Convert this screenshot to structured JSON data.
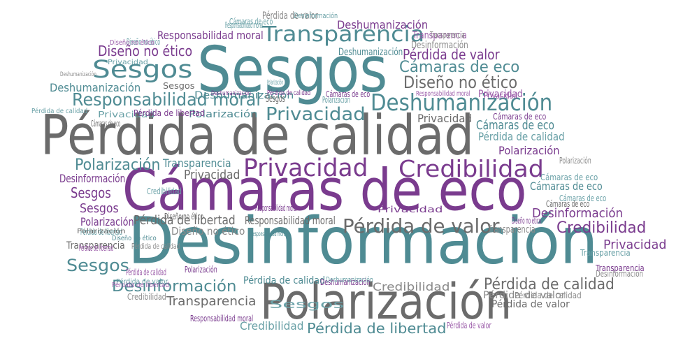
{
  "palette": {
    "teal": "#4f8b93",
    "gray": "#6b6b6b",
    "purple": "#7a3b8e",
    "light_teal": "#6aa1a7",
    "light_gray": "#8a8a8a",
    "light_purple": "#9a5aa8"
  },
  "words": [
    {
      "text": "Desinformación",
      "color": "#4f8b93"
    },
    {
      "text": "Cámaras de eco",
      "color": "#7a3b8e"
    },
    {
      "text": "Pérdida de calidad",
      "color": "#6b6b6b"
    },
    {
      "text": "Sesgos",
      "color": "#4f8b93"
    },
    {
      "text": "Polarización",
      "color": "#6b6b6b"
    },
    {
      "text": "Transparencia",
      "color": "#4f8b93"
    },
    {
      "text": "Deshumanización",
      "color": "#4f8b93"
    },
    {
      "text": "Credibilidad",
      "color": "#7a3b8e"
    },
    {
      "text": "Privacidad",
      "color": "#7a3b8e"
    },
    {
      "text": "Sesgos",
      "color": "#4f8b93"
    },
    {
      "text": "Pérdida de valor",
      "color": "#6b6b6b"
    },
    {
      "text": "Responsabilidad moral",
      "color": "#4f8b93"
    },
    {
      "text": "Privacidad",
      "color": "#4f8b93"
    },
    {
      "text": "Diseño no ético",
      "color": "#6b6b6b"
    },
    {
      "text": "Cámaras de eco",
      "color": "#4f8b93"
    },
    {
      "text": "Pérdida de calidad",
      "color": "#6b6b6b"
    },
    {
      "text": "Desinformación",
      "color": "#4f8b93"
    },
    {
      "text": "Sesgos",
      "color": "#4f8b93"
    },
    {
      "text": "Credibilidad",
      "color": "#7a3b8e"
    },
    {
      "text": "Pérdida de libertad",
      "color": "#4f8b93"
    },
    {
      "text": "Transparencia",
      "color": "#6b6b6b"
    },
    {
      "text": "Polarización",
      "color": "#4f8b93"
    },
    {
      "text": "Diseño no ético",
      "color": "#7a3b8e"
    },
    {
      "text": "Responsabilidad moral",
      "color": "#7a3b8e"
    },
    {
      "text": "Pérdida de valor",
      "color": "#7a3b8e"
    },
    {
      "text": "Deshumanización",
      "color": "#7a3b8e"
    },
    {
      "text": "Privacidad",
      "color": "#7a3b8e"
    },
    {
      "text": "Polarización",
      "color": "#7a3b8e"
    },
    {
      "text": "Desinformación",
      "color": "#7a3b8e"
    },
    {
      "text": "Cámaras de eco",
      "color": "#4f8b93"
    },
    {
      "text": "Pérdida de calidad",
      "color": "#6aa1a7"
    },
    {
      "text": "Deshumanización",
      "color": "#4f8b93"
    },
    {
      "text": "Privacidad",
      "color": "#6b6b6b"
    },
    {
      "text": "Sesgos",
      "color": "#7a3b8e"
    },
    {
      "text": "Sesgos",
      "color": "#7a3b8e"
    },
    {
      "text": "Pérdida de libertad",
      "color": "#6b6b6b"
    },
    {
      "text": "Transparencia",
      "color": "#6b6b6b"
    },
    {
      "text": "Credibilidad",
      "color": "#8a8a8a"
    },
    {
      "text": "Desinformación",
      "color": "#7a3b8e"
    },
    {
      "text": "Privacidad",
      "color": "#6b6b6b"
    },
    {
      "text": "Polarización",
      "color": "#7a3b8e"
    },
    {
      "text": "Diseño no ético",
      "color": "#8a8a8a"
    },
    {
      "text": "Responsabilidad moral",
      "color": "#6b6b6b"
    },
    {
      "text": "Pérdida de valor",
      "color": "#8a8a8a"
    },
    {
      "text": "Cámaras de eco",
      "color": "#4f8b93"
    },
    {
      "text": "Pérdida de calidad",
      "color": "#4f8b93"
    },
    {
      "text": "Cámaras de eco",
      "color": "#6aa1a7"
    },
    {
      "text": "Transparencia",
      "color": "#4f8b93"
    },
    {
      "text": "Deshumanización",
      "color": "#4f8b93"
    },
    {
      "text": "Polarización",
      "color": "#4f8b93"
    },
    {
      "text": "Privacidad",
      "color": "#6aa1a7"
    },
    {
      "text": "Privacidad",
      "color": "#9a5aa8"
    },
    {
      "text": "Sesgos",
      "color": "#6b6b6b"
    },
    {
      "text": "Sesgos",
      "color": "#6b6b6b"
    },
    {
      "text": "Transparencia",
      "color": "#9a5aa8"
    },
    {
      "text": "Transparencia",
      "color": "#8a8a8a"
    },
    {
      "text": "Pérdida de libertad",
      "color": "#7a3b8e"
    },
    {
      "text": "Pérdida de libertad",
      "color": "#9a5aa8"
    },
    {
      "text": "Pérdida de valor",
      "color": "#8a8a8a"
    },
    {
      "text": "Pérdida de valor",
      "color": "#6b6b6b"
    },
    {
      "text": "Pérdida de calidad",
      "color": "#8a8a8a"
    },
    {
      "text": "Cámaras de eco",
      "color": "#6aa1a7"
    },
    {
      "text": "Cámaras de eco",
      "color": "#6b6b6b"
    },
    {
      "text": "Diseño no ético",
      "color": "#6aa1a7"
    },
    {
      "text": "Deshumanización",
      "color": "#4f8b93"
    },
    {
      "text": "Deshumanización",
      "color": "#7a3b8e"
    },
    {
      "text": "Desinformación",
      "color": "#8a8a8a"
    },
    {
      "text": "Desinformación",
      "color": "#8a8a8a"
    },
    {
      "text": "Pérdida de calidad",
      "color": "#9a5aa8"
    },
    {
      "text": "Pérdida de calidad",
      "color": "#6aa1a7"
    },
    {
      "text": "Pérdida de calidad",
      "color": "#7a3b8e"
    },
    {
      "text": "Pérdida de calidad",
      "color": "#8a8a8a"
    },
    {
      "text": "Pérdida de libertad",
      "color": "#9a5aa8"
    },
    {
      "text": "Pérdida de libertad",
      "color": "#6aa1a7"
    },
    {
      "text": "Cámaras de eco",
      "color": "#6b6b6b"
    },
    {
      "text": "Cámaras de eco",
      "color": "#7a3b8e"
    },
    {
      "text": "Cámaras de eco",
      "color": "#7a3b8e"
    },
    {
      "text": "Cámaras de eco",
      "color": "#6aa1a7"
    },
    {
      "text": "Diseño no ético",
      "color": "#9a5aa8"
    },
    {
      "text": "Diseño no ético",
      "color": "#4f8b93"
    },
    {
      "text": "Diseño no ético",
      "color": "#7a3b8e"
    },
    {
      "text": "Diseño no ético",
      "color": "#6b6b6b"
    },
    {
      "text": "Deshumanización",
      "color": "#7a3b8e"
    },
    {
      "text": "Deshumanización",
      "color": "#8a8a8a"
    },
    {
      "text": "Deshumanización",
      "color": "#6aa1a7"
    },
    {
      "text": "Responsabilidad moral",
      "color": "#7a3b8e"
    },
    {
      "text": "Responsabilidad moral",
      "color": "#9a5aa8"
    },
    {
      "text": "Responsabilidad moral",
      "color": "#4f8b93"
    },
    {
      "text": "Responsabilidad moral",
      "color": "#7a3b8e"
    },
    {
      "text": "Responsabilidad moral",
      "color": "#6aa1a7"
    },
    {
      "text": "Privacidad",
      "color": "#9a5aa8"
    },
    {
      "text": "Privacidad",
      "color": "#7a3b8e"
    },
    {
      "text": "Privacidad",
      "color": "#6aa1a7"
    },
    {
      "text": "Polarización",
      "color": "#6aa1a7"
    },
    {
      "text": "Polarización",
      "color": "#6aa1a7"
    },
    {
      "text": "Polarización",
      "color": "#6b6b6b"
    },
    {
      "text": "Polarización",
      "color": "#8a8a8a"
    },
    {
      "text": "Polarización",
      "color": "#7a3b8e"
    },
    {
      "text": "Credibilidad",
      "color": "#6aa1a7"
    },
    {
      "text": "Credibilidad",
      "color": "#6aa1a7"
    },
    {
      "text": "Credibilidad",
      "color": "#8a8a8a"
    },
    {
      "text": "Transparencia",
      "color": "#6aa1a7"
    },
    {
      "text": "Transparencia",
      "color": "#7a3b8e"
    },
    {
      "text": "Transparencia",
      "color": "#8a8a8a"
    },
    {
      "text": "Pérdida de valor",
      "color": "#9a5aa8"
    },
    {
      "text": "Pérdida de valor",
      "color": "#6aa1a7"
    },
    {
      "text": "Desinformación",
      "color": "#6aa1a7"
    },
    {
      "text": "Sesgos",
      "color": "#6aa1a7"
    }
  ]
}
